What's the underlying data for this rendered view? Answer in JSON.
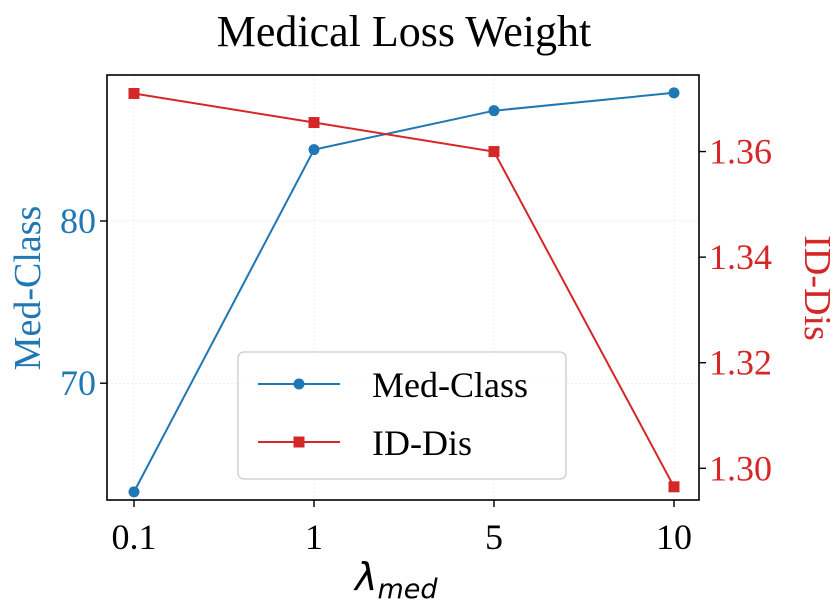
{
  "chart_data": {
    "type": "line",
    "title": "Medical Loss Weight",
    "xlabel": {
      "main": "λ",
      "sub": "med"
    },
    "categories": [
      "0.1",
      "1",
      "5",
      "10"
    ],
    "y_left": {
      "label": "Med-Class",
      "lim": [
        62.8,
        89.0
      ],
      "ticks": [
        70,
        80
      ],
      "color": "#1f77b4"
    },
    "y_right": {
      "label": "ID-Dis",
      "lim": [
        1.294,
        1.3745
      ],
      "ticks": [
        "1.30",
        "1.32",
        "1.34",
        "1.36"
      ],
      "color": "#d62728"
    },
    "series": [
      {
        "name": "Med-Class",
        "axis": "left",
        "marker": "circle",
        "color": "#1f77b4",
        "values": [
          63.3,
          84.4,
          86.8,
          87.9
        ]
      },
      {
        "name": "ID-Dis",
        "axis": "right",
        "marker": "square",
        "color": "#d62728",
        "values": [
          1.371,
          1.3655,
          1.36,
          1.2965
        ]
      }
    ],
    "legend": {
      "position": "lower-right"
    },
    "grid": true
  }
}
